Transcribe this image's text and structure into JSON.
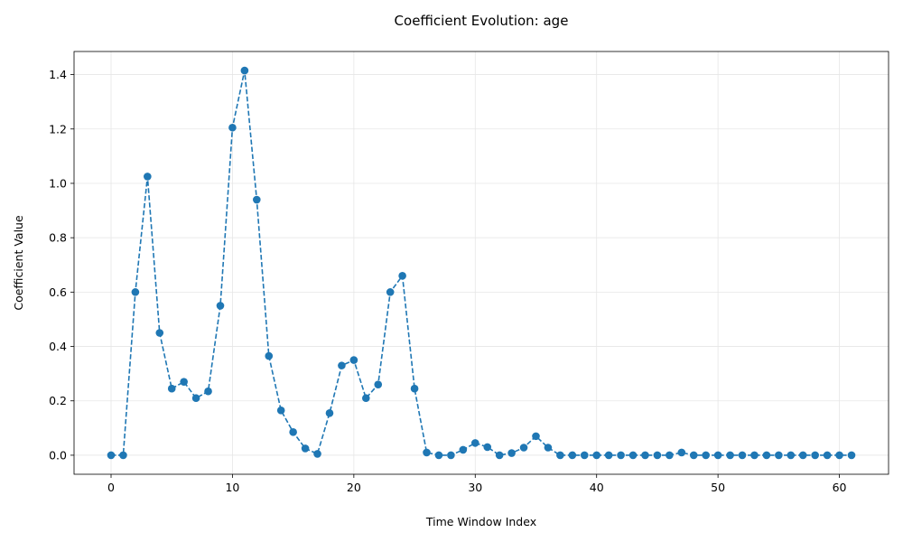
{
  "chart_data": {
    "type": "line",
    "title": "Coefficient Evolution: age",
    "xlabel": "Time Window Index",
    "ylabel": "Coefficient Value",
    "xlim": [
      -3.05,
      64.05
    ],
    "ylim": [
      -0.07,
      1.485
    ],
    "x_ticks": [
      0,
      10,
      20,
      30,
      40,
      50,
      60
    ],
    "y_ticks": [
      0.0,
      0.2,
      0.4,
      0.6,
      0.8,
      1.0,
      1.2,
      1.4
    ],
    "x_tick_labels": [
      "0",
      "10",
      "20",
      "30",
      "40",
      "50",
      "60"
    ],
    "y_tick_labels": [
      "0.0",
      "0.2",
      "0.4",
      "0.6",
      "0.8",
      "1.0",
      "1.2",
      "1.4"
    ],
    "grid": true,
    "line_style": "dashed",
    "marker": "circle",
    "color": "#1f77b4",
    "series": [
      {
        "x": [
          0,
          1,
          2,
          3,
          4,
          5,
          6,
          7,
          8,
          9,
          10,
          11,
          12,
          13,
          14,
          15,
          16,
          17,
          18,
          19,
          20,
          21,
          22,
          23,
          24,
          25,
          26,
          27,
          28,
          29,
          30,
          31,
          32,
          33,
          34,
          35,
          36,
          37,
          38,
          39,
          40,
          41,
          42,
          43,
          44,
          45,
          46,
          47,
          48,
          49,
          50,
          51,
          52,
          53,
          54,
          55,
          56,
          57,
          58,
          59,
          60,
          61
        ],
        "values": [
          0.0,
          0.0,
          0.6,
          1.025,
          0.45,
          0.245,
          0.27,
          0.21,
          0.235,
          0.55,
          1.205,
          1.415,
          0.94,
          0.365,
          0.165,
          0.085,
          0.025,
          0.005,
          0.155,
          0.33,
          0.35,
          0.21,
          0.26,
          0.6,
          0.66,
          0.245,
          0.01,
          0.0,
          0.0,
          0.02,
          0.045,
          0.03,
          0.0,
          0.008,
          0.028,
          0.07,
          0.028,
          0.0,
          0.0,
          0.0,
          0.0,
          0.0,
          0.0,
          0.0,
          0.0,
          0.0,
          0.0,
          0.01,
          0.0,
          0.0,
          0.0,
          0.0,
          0.0,
          0.0,
          0.0,
          0.0,
          0.0,
          0.0,
          0.0,
          0.0,
          0.0,
          0.0
        ]
      }
    ]
  }
}
